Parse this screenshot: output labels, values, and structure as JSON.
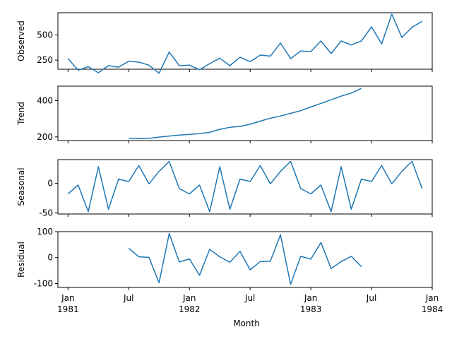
{
  "chart_data": {
    "type": "line",
    "xlabel": "Month",
    "x_ticks": [
      {
        "date": "1981-01",
        "line1": "Jan",
        "line2": "1981"
      },
      {
        "date": "1981-07",
        "line1": "Jul",
        "line2": ""
      },
      {
        "date": "1982-01",
        "line1": "Jan",
        "line2": "1982"
      },
      {
        "date": "1982-07",
        "line1": "Jul",
        "line2": ""
      },
      {
        "date": "1983-01",
        "line1": "Jan",
        "line2": "1983"
      },
      {
        "date": "1983-07",
        "line1": "Jul",
        "line2": ""
      },
      {
        "date": "1984-01",
        "line1": "Jan",
        "line2": "1984"
      }
    ],
    "xlim": [
      "1980-12",
      "1984-01"
    ],
    "color": "#1f77b4",
    "panels": [
      {
        "ylabel": "Observed",
        "ylim": [
          160,
          720
        ],
        "yticks": [
          250,
          500
        ],
        "x": [
          "1981-01",
          "1981-02",
          "1981-03",
          "1981-04",
          "1981-05",
          "1981-06",
          "1981-07",
          "1981-08",
          "1981-09",
          "1981-10",
          "1981-11",
          "1981-12",
          "1982-01",
          "1982-02",
          "1982-03",
          "1982-04",
          "1982-05",
          "1982-06",
          "1982-07",
          "1982-08",
          "1982-09",
          "1982-10",
          "1982-11",
          "1982-12",
          "1983-01",
          "1983-02",
          "1983-03",
          "1983-04",
          "1983-05",
          "1983-06",
          "1983-07",
          "1983-08",
          "1983-09",
          "1983-10",
          "1983-11",
          "1983-12"
        ],
        "values": [
          265,
          150,
          185,
          125,
          195,
          180,
          240,
          230,
          200,
          120,
          330,
          195,
          200,
          155,
          215,
          270,
          195,
          280,
          235,
          300,
          290,
          420,
          265,
          340,
          335,
          440,
          315,
          440,
          400,
          440,
          580,
          410,
          705,
          475,
          575,
          635
        ]
      },
      {
        "ylabel": "Trend",
        "ylim": [
          180,
          480
        ],
        "yticks": [
          200,
          400
        ],
        "x": [
          "1981-07",
          "1981-08",
          "1981-09",
          "1981-10",
          "1981-11",
          "1981-12",
          "1982-01",
          "1982-02",
          "1982-03",
          "1982-04",
          "1982-05",
          "1982-06",
          "1982-07",
          "1982-08",
          "1982-09",
          "1982-10",
          "1982-11",
          "1982-12",
          "1983-01",
          "1983-02",
          "1983-03",
          "1983-04",
          "1983-05",
          "1983-06"
        ],
        "values": [
          193,
          191,
          192,
          199,
          205,
          210,
          214,
          218,
          225,
          242,
          253,
          258,
          270,
          287,
          303,
          315,
          330,
          345,
          365,
          385,
          405,
          425,
          442,
          468
        ]
      },
      {
        "ylabel": "Seasonal",
        "ylim": [
          -52,
          40
        ],
        "yticks": [
          -50,
          0
        ],
        "x": [
          "1981-01",
          "1981-02",
          "1981-03",
          "1981-04",
          "1981-05",
          "1981-06",
          "1981-07",
          "1981-08",
          "1981-09",
          "1981-10",
          "1981-11",
          "1981-12",
          "1982-01",
          "1982-02",
          "1982-03",
          "1982-04",
          "1982-05",
          "1982-06",
          "1982-07",
          "1982-08",
          "1982-09",
          "1982-10",
          "1982-11",
          "1982-12",
          "1983-01",
          "1983-02",
          "1983-03",
          "1983-04",
          "1983-05",
          "1983-06",
          "1983-07",
          "1983-08",
          "1983-09",
          "1983-10",
          "1983-11",
          "1983-12"
        ],
        "values": [
          -18,
          -3,
          -48,
          28,
          -44,
          7,
          3,
          30,
          -1,
          20,
          37,
          -9,
          -18,
          -3,
          -48,
          28,
          -44,
          7,
          3,
          30,
          -1,
          20,
          37,
          -9,
          -18,
          -3,
          -48,
          28,
          -44,
          7,
          3,
          30,
          -1,
          20,
          37,
          -9
        ]
      },
      {
        "ylabel": "Residual",
        "ylim": [
          -115,
          100
        ],
        "yticks": [
          -100,
          0,
          100
        ],
        "x": [
          "1981-07",
          "1981-08",
          "1981-09",
          "1981-10",
          "1981-11",
          "1981-12",
          "1982-01",
          "1982-02",
          "1982-03",
          "1982-04",
          "1982-05",
          "1982-06",
          "1982-07",
          "1982-08",
          "1982-09",
          "1982-10",
          "1982-11",
          "1982-12",
          "1983-01",
          "1983-02",
          "1983-03",
          "1983-04",
          "1983-05",
          "1983-06"
        ],
        "values": [
          36,
          3,
          1,
          -97,
          93,
          -17,
          -5,
          -68,
          32,
          3,
          -18,
          24,
          -47,
          -15,
          -14,
          88,
          -103,
          5,
          -6,
          58,
          -42,
          -15,
          5,
          -35
        ]
      }
    ]
  }
}
